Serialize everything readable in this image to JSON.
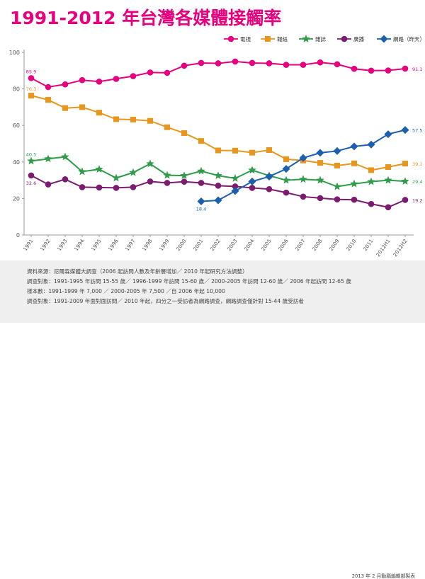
{
  "title": "1991-2012 年台灣各媒體接觸率",
  "notes": [
    "資料來源：尼爾森媒體大調查（2006 起訪問人數及年齡層增加／ 2010 年起研究方法調整）",
    "調查對象：1991-1995 年訪問 15-55 歲／ 1996-1999 年訪問 15-60 歲／ 2000-2005 年訪問 12-60 歲／ 2006 年起訪問 12-65 歲",
    "樣本數：1991-1999 年 7,000 ／ 2000-2005 年 7,500 ／自 2006 年起 10,000",
    "調查對象：1991-2009 年面對面訪問／ 2010 年起，四分之一受訪者為網路調查，網路調查僅針對 15-44 歲受訪者"
  ],
  "credit": "2013 年 2 月動腦編輯部製表",
  "chart_data": {
    "type": "line",
    "categories": [
      "1991",
      "1992",
      "1993",
      "1994",
      "1995",
      "1996",
      "1997",
      "1998",
      "1999",
      "2000",
      "2001",
      "2002",
      "2003",
      "2004",
      "2005",
      "2006",
      "2007",
      "2008",
      "2009",
      "2010",
      "2011",
      "2012H1",
      "2012H2"
    ],
    "ylim": [
      0,
      100
    ],
    "yticks": [
      0,
      20,
      40,
      60,
      80,
      100
    ],
    "grid": false,
    "legend_position": "top-right",
    "series": [
      {
        "name": "電視",
        "color": "#e6007e",
        "marker": "circle",
        "values": [
          85.9,
          81,
          82.5,
          84.8,
          84,
          85.5,
          87,
          89,
          88.8,
          92.7,
          94.2,
          94,
          95,
          94.2,
          94,
          93.2,
          93.2,
          94.5,
          93.5,
          91,
          90,
          90.1,
          91.1
        ],
        "start_label": "85.9",
        "end_label": "91.1"
      },
      {
        "name": "報紙",
        "color": "#e8961e",
        "marker": "square",
        "values": [
          76.3,
          74,
          69.5,
          70,
          67,
          63.4,
          63.2,
          62.5,
          59,
          55.8,
          51.5,
          46.3,
          46.2,
          45.1,
          46.5,
          41.5,
          40.8,
          39.5,
          38,
          39.2,
          35.5,
          37.2,
          39.1
        ],
        "start_label": "76.3",
        "end_label": "39.1"
      },
      {
        "name": "雜誌",
        "color": "#2e9c48",
        "marker": "star",
        "values": [
          40.5,
          41.7,
          42.8,
          34.7,
          36,
          31.2,
          34.2,
          39,
          32.7,
          32.5,
          35,
          32.5,
          31,
          35.5,
          32.5,
          30,
          30.5,
          30,
          26.5,
          28,
          29.2,
          30,
          29.4
        ],
        "start_label": "40.5",
        "end_label": "29.4"
      },
      {
        "name": "廣播",
        "color": "#7b1c6e",
        "marker": "circle",
        "values": [
          32.6,
          27.7,
          30.5,
          26.2,
          26,
          25.8,
          26.2,
          29.3,
          28.5,
          29.2,
          28.5,
          27,
          26.6,
          25.8,
          25.1,
          23.2,
          21,
          20.2,
          19.5,
          19.3,
          17,
          15.2,
          19.2
        ],
        "start_label": "32.6",
        "end_label": "19.2"
      },
      {
        "name": "網路（昨天）",
        "color": "#1b5fb0",
        "marker": "diamond",
        "start_index": 10,
        "values": [
          null,
          null,
          null,
          null,
          null,
          null,
          null,
          null,
          null,
          null,
          18.4,
          19,
          24.1,
          29.3,
          32,
          36.2,
          42.2,
          45,
          46,
          48.5,
          49.5,
          55.2,
          57.5
        ],
        "start_label": "18.4",
        "end_label": "57.5"
      }
    ]
  }
}
